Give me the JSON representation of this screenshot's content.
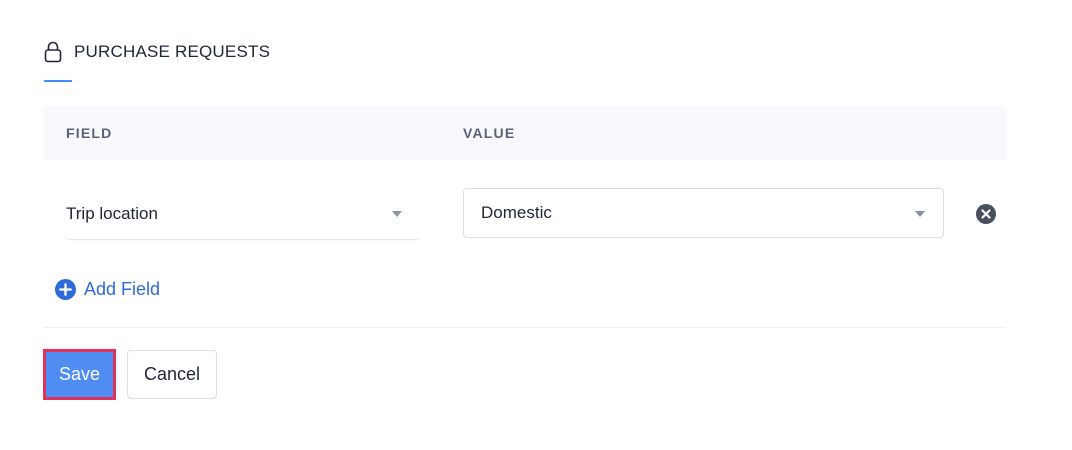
{
  "header": {
    "title": "PURCHASE REQUESTS",
    "icon": "lock-icon"
  },
  "table": {
    "columns": [
      "FIELD",
      "VALUE"
    ],
    "rows": [
      {
        "field": "Trip location",
        "value": "Domestic"
      }
    ]
  },
  "actions": {
    "add_field": "Add Field",
    "save": "Save",
    "cancel": "Cancel"
  },
  "colors": {
    "accent": "#408dfb",
    "save_bg": "#4f8df3",
    "highlight": "#e0335a",
    "link": "#2f6ad9"
  }
}
